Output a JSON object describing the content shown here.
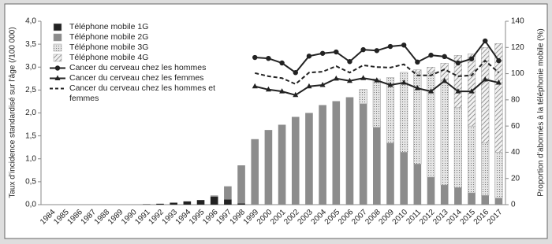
{
  "chart_data": {
    "type": "bar-line",
    "y_label": "Taux d’incidence standardisé sur l’âge (/100 000)",
    "y2_label": "Proportion d’abonnés à la téléphonie mobile (%)",
    "categories": [
      "1984",
      "1985",
      "1986",
      "1987",
      "1988",
      "1989",
      "1990",
      "1991",
      "1992",
      "1993",
      "1994",
      "1995",
      "1996",
      "1997",
      "1998",
      "1999",
      "2000",
      "2001",
      "2002",
      "2003",
      "2004",
      "2005",
      "2006",
      "2007",
      "2008",
      "2009",
      "2010",
      "2011",
      "2012",
      "2013",
      "2014",
      "2015",
      "2016",
      "2017"
    ],
    "ylim": [
      0,
      4
    ],
    "yticks": [
      {
        "value": 0,
        "label": "0,0"
      },
      {
        "value": 0.5,
        "label": "0,5"
      },
      {
        "value": 1,
        "label": "1,0"
      },
      {
        "value": 1.5,
        "label": "1,5"
      },
      {
        "value": 2,
        "label": "2,0"
      },
      {
        "value": 2.5,
        "label": "2,5"
      },
      {
        "value": 3,
        "label": "3,0"
      },
      {
        "value": 3.5,
        "label": "3,5"
      },
      {
        "value": 4,
        "label": "4,0"
      }
    ],
    "y2lim": [
      0,
      140
    ],
    "y2ticks": [
      0,
      20,
      40,
      60,
      80,
      100,
      120,
      140
    ],
    "series": [
      {
        "name": "Téléphone mobile 1G",
        "kind": "bar",
        "axis": "y2",
        "color": "#222222",
        "hatch": "none",
        "values": [
          null,
          null,
          null,
          null,
          null,
          null,
          null,
          0.3,
          0.7,
          1.5,
          2.5,
          3.5,
          6,
          4,
          1,
          null,
          null,
          null,
          null,
          null,
          null,
          null,
          null,
          null,
          null,
          null,
          null,
          null,
          null,
          null,
          null,
          null,
          null,
          null
        ]
      },
      {
        "name": "Téléphone mobile 2G",
        "kind": "bar",
        "axis": "y2",
        "color": "#8c8c8c",
        "hatch": "none",
        "values": [
          null,
          null,
          null,
          null,
          null,
          null,
          null,
          null,
          null,
          null,
          null,
          null,
          1,
          10,
          29,
          50,
          57,
          61,
          67,
          70,
          76,
          79,
          82,
          77,
          59,
          47,
          40,
          31,
          21,
          15,
          13,
          9,
          7,
          5
        ]
      },
      {
        "name": "Téléphone mobile 3G",
        "kind": "bar",
        "axis": "y2",
        "color": "#cfcfcf",
        "hatch": "dots",
        "values": [
          null,
          null,
          null,
          null,
          null,
          null,
          null,
          null,
          null,
          null,
          null,
          null,
          null,
          null,
          null,
          null,
          null,
          null,
          null,
          null,
          null,
          null,
          null,
          11,
          37,
          50,
          61,
          70,
          80,
          78,
          61,
          51,
          40,
          35
        ]
      },
      {
        "name": "Téléphone mobile 4G",
        "kind": "bar",
        "axis": "y2",
        "color": "#9a9a9a",
        "hatch": "diagonal",
        "values": [
          null,
          null,
          null,
          null,
          null,
          null,
          null,
          null,
          null,
          null,
          null,
          null,
          null,
          null,
          null,
          null,
          null,
          null,
          null,
          null,
          null,
          null,
          null,
          null,
          null,
          null,
          null,
          2,
          4,
          15,
          40,
          55,
          73,
          83
        ]
      },
      {
        "name": "Cancer du cerveau chez les hommes",
        "kind": "line",
        "color": "#222222",
        "marker": "circle",
        "dashed": false,
        "values": [
          null,
          null,
          null,
          null,
          null,
          null,
          null,
          null,
          null,
          null,
          null,
          null,
          null,
          null,
          null,
          3.21,
          3.19,
          3.09,
          2.88,
          3.24,
          3.3,
          3.33,
          3.12,
          3.38,
          3.36,
          3.45,
          3.48,
          3.11,
          3.26,
          3.23,
          3.09,
          3.18,
          3.57,
          3.14
        ]
      },
      {
        "name": "Cancer du cerveau chez les femmes",
        "kind": "line",
        "color": "#222222",
        "marker": "triangle",
        "dashed": false,
        "values": [
          null,
          null,
          null,
          null,
          null,
          null,
          null,
          null,
          null,
          null,
          null,
          null,
          null,
          null,
          null,
          2.58,
          2.51,
          2.47,
          2.39,
          2.58,
          2.61,
          2.75,
          2.7,
          2.76,
          2.71,
          2.61,
          2.66,
          2.54,
          2.47,
          2.7,
          2.47,
          2.47,
          2.73,
          2.66
        ]
      },
      {
        "name": "Cancer du cerveau chez les hommes et femmes",
        "kind": "line",
        "color": "#222222",
        "marker": "none",
        "dashed": true,
        "values": [
          null,
          null,
          null,
          null,
          null,
          null,
          null,
          null,
          null,
          null,
          null,
          null,
          null,
          null,
          null,
          2.87,
          2.8,
          2.76,
          2.63,
          2.88,
          2.9,
          3.02,
          2.88,
          3.04,
          3.0,
          2.99,
          3.06,
          2.82,
          2.82,
          2.95,
          2.8,
          2.82,
          3.14,
          2.88
        ]
      }
    ]
  }
}
